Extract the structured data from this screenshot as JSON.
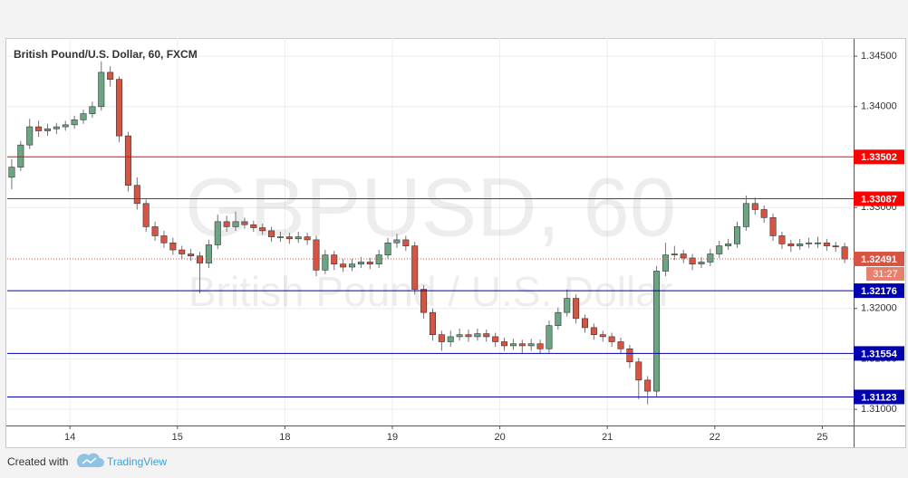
{
  "chart_data": {
    "type": "candlestick",
    "title": "British Pound/U.S. Dollar, 60, FXCM",
    "watermark": "GBPUSD, 60",
    "watermark_subtitle": "British Pound / U.S. Dollar",
    "up_color": "#6ba583",
    "down_color": "#d75442",
    "wick_color": "#737375",
    "grid": true,
    "xlim": [
      0,
      189
    ],
    "ylim": [
      1.3084,
      1.3468
    ],
    "xticks": [
      {
        "value": 14,
        "label": "14"
      },
      {
        "value": 38,
        "label": "15"
      },
      {
        "value": 62,
        "label": "18"
      },
      {
        "value": 86,
        "label": "19"
      },
      {
        "value": 110,
        "label": "20"
      },
      {
        "value": 134,
        "label": "21"
      },
      {
        "value": 158,
        "label": "22"
      },
      {
        "value": 182,
        "label": "25"
      }
    ],
    "yticks": [
      {
        "value": 1.345,
        "label": "1.34500"
      },
      {
        "value": 1.34,
        "label": "1.34000"
      },
      {
        "value": 1.33,
        "label": "1.33000"
      },
      {
        "value": 1.32,
        "label": "1.32000"
      },
      {
        "value": 1.315,
        "label": "1.31500"
      },
      {
        "value": 1.31,
        "label": "1.31000"
      }
    ],
    "levels": [
      {
        "value": 1.33502,
        "color": "#ff0000"
      },
      {
        "value": 1.33087,
        "color": "#ff0000"
      },
      {
        "value": 1.32176,
        "color": "#0000b0"
      },
      {
        "value": 1.31554,
        "color": "#0000b0"
      },
      {
        "value": 1.31123,
        "color": "#0000b0"
      }
    ],
    "last_price": 1.32491,
    "countdown": "31:27",
    "x": [
      1,
      3,
      5,
      7,
      9,
      11,
      13,
      15,
      17,
      19,
      21,
      23,
      25,
      27,
      29,
      31,
      33,
      35,
      37,
      39,
      41,
      43,
      45,
      47,
      49,
      51,
      53,
      55,
      57,
      59,
      61,
      63,
      65,
      67,
      69,
      71,
      73,
      75,
      77,
      79,
      81,
      83,
      85,
      87,
      89,
      91,
      93,
      95,
      97,
      99,
      101,
      103,
      105,
      107,
      109,
      111,
      113,
      115,
      117,
      119,
      121,
      123,
      125,
      127,
      129,
      131,
      133,
      135,
      137,
      139,
      141,
      143,
      145,
      147,
      149,
      151,
      153,
      155,
      157,
      159,
      161,
      163,
      165,
      167,
      169,
      171,
      173,
      175,
      177,
      179,
      181,
      183,
      185,
      187
    ],
    "ohlc": [
      [
        1.333,
        1.3348,
        1.3318,
        1.334
      ],
      [
        1.334,
        1.3366,
        1.3336,
        1.3362
      ],
      [
        1.3362,
        1.3388,
        1.3358,
        1.338
      ],
      [
        1.338,
        1.3386,
        1.337,
        1.3376
      ],
      [
        1.3376,
        1.3383,
        1.3371,
        1.3378
      ],
      [
        1.3378,
        1.3384,
        1.3373,
        1.338
      ],
      [
        1.338,
        1.3386,
        1.3376,
        1.3382
      ],
      [
        1.3382,
        1.3391,
        1.3378,
        1.3387
      ],
      [
        1.3387,
        1.3397,
        1.3383,
        1.3393
      ],
      [
        1.3393,
        1.3405,
        1.3389,
        1.34
      ],
      [
        1.34,
        1.3445,
        1.3396,
        1.3434
      ],
      [
        1.3434,
        1.344,
        1.342,
        1.3427
      ],
      [
        1.3427,
        1.343,
        1.3365,
        1.3371
      ],
      [
        1.3371,
        1.3375,
        1.3316,
        1.3322
      ],
      [
        1.3322,
        1.333,
        1.3298,
        1.3304
      ],
      [
        1.3304,
        1.3308,
        1.3276,
        1.3281
      ],
      [
        1.3281,
        1.3286,
        1.3267,
        1.3272
      ],
      [
        1.3272,
        1.3277,
        1.326,
        1.3265
      ],
      [
        1.3265,
        1.327,
        1.3253,
        1.3258
      ],
      [
        1.3258,
        1.3262,
        1.3249,
        1.3254
      ],
      [
        1.3254,
        1.3259,
        1.3247,
        1.3252
      ],
      [
        1.3252,
        1.3256,
        1.3215,
        1.3245
      ],
      [
        1.3245,
        1.3268,
        1.324,
        1.3263
      ],
      [
        1.3263,
        1.3293,
        1.3259,
        1.3286
      ],
      [
        1.3286,
        1.3292,
        1.3276,
        1.3281
      ],
      [
        1.3281,
        1.3296,
        1.3277,
        1.3286
      ],
      [
        1.3286,
        1.329,
        1.3279,
        1.3283
      ],
      [
        1.3283,
        1.3287,
        1.3276,
        1.328
      ],
      [
        1.328,
        1.3284,
        1.3273,
        1.3277
      ],
      [
        1.3277,
        1.3281,
        1.3266,
        1.3271
      ],
      [
        1.3271,
        1.3276,
        1.3266,
        1.3271
      ],
      [
        1.3271,
        1.3275,
        1.3264,
        1.3269
      ],
      [
        1.3269,
        1.3276,
        1.3265,
        1.3271
      ],
      [
        1.3271,
        1.3275,
        1.3263,
        1.3268
      ],
      [
        1.3268,
        1.3272,
        1.3232,
        1.3238
      ],
      [
        1.3238,
        1.3258,
        1.3234,
        1.3253
      ],
      [
        1.3253,
        1.3257,
        1.3238,
        1.3244
      ],
      [
        1.3244,
        1.3249,
        1.3236,
        1.3241
      ],
      [
        1.3241,
        1.3249,
        1.3237,
        1.3244
      ],
      [
        1.3244,
        1.3251,
        1.324,
        1.3246
      ],
      [
        1.3246,
        1.325,
        1.3239,
        1.3244
      ],
      [
        1.3244,
        1.3258,
        1.324,
        1.3253
      ],
      [
        1.3253,
        1.327,
        1.3249,
        1.3265
      ],
      [
        1.3265,
        1.3274,
        1.326,
        1.3268
      ],
      [
        1.3268,
        1.3272,
        1.3257,
        1.3262
      ],
      [
        1.3262,
        1.3266,
        1.3214,
        1.3219
      ],
      [
        1.3219,
        1.3223,
        1.319,
        1.3196
      ],
      [
        1.3196,
        1.32,
        1.3168,
        1.3174
      ],
      [
        1.3174,
        1.3178,
        1.3158,
        1.3167
      ],
      [
        1.3167,
        1.3178,
        1.3162,
        1.3172
      ],
      [
        1.3172,
        1.318,
        1.3168,
        1.3174
      ],
      [
        1.3174,
        1.3179,
        1.3167,
        1.3172
      ],
      [
        1.3172,
        1.318,
        1.3168,
        1.3175
      ],
      [
        1.3175,
        1.3179,
        1.3167,
        1.3172
      ],
      [
        1.3172,
        1.3176,
        1.3162,
        1.3167
      ],
      [
        1.3167,
        1.3171,
        1.3158,
        1.3163
      ],
      [
        1.3163,
        1.317,
        1.3159,
        1.3165
      ],
      [
        1.3165,
        1.3169,
        1.3156,
        1.3163
      ],
      [
        1.3163,
        1.317,
        1.3158,
        1.3165
      ],
      [
        1.3165,
        1.3169,
        1.3155,
        1.316
      ],
      [
        1.316,
        1.3188,
        1.3156,
        1.3183
      ],
      [
        1.3183,
        1.3201,
        1.3179,
        1.3196
      ],
      [
        1.3196,
        1.3219,
        1.3192,
        1.321
      ],
      [
        1.321,
        1.3214,
        1.3185,
        1.319
      ],
      [
        1.319,
        1.3194,
        1.3176,
        1.3181
      ],
      [
        1.3181,
        1.3185,
        1.3169,
        1.3174
      ],
      [
        1.3174,
        1.3178,
        1.3167,
        1.3172
      ],
      [
        1.3172,
        1.3176,
        1.3162,
        1.3167
      ],
      [
        1.3167,
        1.3171,
        1.3155,
        1.316
      ],
      [
        1.316,
        1.3164,
        1.3141,
        1.3147
      ],
      [
        1.3147,
        1.3151,
        1.311,
        1.3129
      ],
      [
        1.3129,
        1.3133,
        1.3105,
        1.3118
      ],
      [
        1.3118,
        1.3242,
        1.3112,
        1.3237
      ],
      [
        1.3237,
        1.3265,
        1.3232,
        1.3253
      ],
      [
        1.3253,
        1.3262,
        1.3248,
        1.3254
      ],
      [
        1.3254,
        1.3258,
        1.3245,
        1.325
      ],
      [
        1.325,
        1.3254,
        1.3238,
        1.3244
      ],
      [
        1.3244,
        1.3251,
        1.324,
        1.3246
      ],
      [
        1.3246,
        1.3259,
        1.3242,
        1.3254
      ],
      [
        1.3254,
        1.3267,
        1.325,
        1.3262
      ],
      [
        1.3262,
        1.3269,
        1.3258,
        1.3264
      ],
      [
        1.3264,
        1.3286,
        1.326,
        1.3281
      ],
      [
        1.3281,
        1.3312,
        1.3277,
        1.3304
      ],
      [
        1.3304,
        1.331,
        1.3293,
        1.3298
      ],
      [
        1.3298,
        1.3302,
        1.3285,
        1.329
      ],
      [
        1.329,
        1.3294,
        1.3267,
        1.3272
      ],
      [
        1.3272,
        1.3276,
        1.3259,
        1.3264
      ],
      [
        1.3264,
        1.3268,
        1.3256,
        1.3262
      ],
      [
        1.3262,
        1.3269,
        1.3258,
        1.3264
      ],
      [
        1.3264,
        1.327,
        1.326,
        1.3265
      ],
      [
        1.3265,
        1.3271,
        1.326,
        1.3265
      ],
      [
        1.3265,
        1.3269,
        1.3257,
        1.3262
      ],
      [
        1.3262,
        1.3266,
        1.3256,
        1.3261
      ],
      [
        1.3261,
        1.3265,
        1.3245,
        1.3249
      ]
    ],
    "footer": {
      "created_with": "Created with",
      "brand": "TradingView"
    }
  }
}
